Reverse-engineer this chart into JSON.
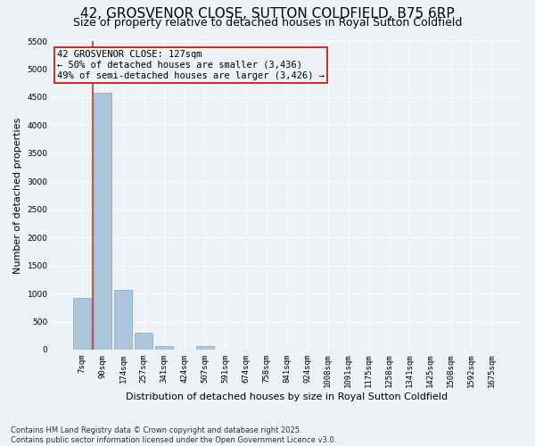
{
  "title": "42, GROSVENOR CLOSE, SUTTON COLDFIELD, B75 6RP",
  "subtitle": "Size of property relative to detached houses in Royal Sutton Coldfield",
  "xlabel": "Distribution of detached houses by size in Royal Sutton Coldfield",
  "ylabel": "Number of detached properties",
  "categories": [
    "7sqm",
    "90sqm",
    "174sqm",
    "257sqm",
    "341sqm",
    "424sqm",
    "507sqm",
    "591sqm",
    "674sqm",
    "758sqm",
    "841sqm",
    "924sqm",
    "1008sqm",
    "1091sqm",
    "1175sqm",
    "1258sqm",
    "1341sqm",
    "1425sqm",
    "1508sqm",
    "1592sqm",
    "1675sqm"
  ],
  "values": [
    920,
    4580,
    1070,
    305,
    65,
    0,
    55,
    0,
    0,
    0,
    0,
    0,
    0,
    0,
    0,
    0,
    0,
    0,
    0,
    0,
    0
  ],
  "bar_color": "#aec6db",
  "bar_edgecolor": "#8ab0cc",
  "ylim": [
    0,
    5500
  ],
  "yticks": [
    0,
    500,
    1000,
    1500,
    2000,
    2500,
    3000,
    3500,
    4000,
    4500,
    5000,
    5500
  ],
  "vline_x_bar_index": 1,
  "vline_color": "#c0392b",
  "annotation_text": "42 GROSVENOR CLOSE: 127sqm\n← 50% of detached houses are smaller (3,436)\n49% of semi-detached houses are larger (3,426) →",
  "annotation_box_color": "#c0392b",
  "footer": "Contains HM Land Registry data © Crown copyright and database right 2025.\nContains public sector information licensed under the Open Government Licence v3.0.",
  "background_color": "#eef2f7",
  "grid_color": "#ffffff",
  "title_fontsize": 11,
  "subtitle_fontsize": 9,
  "tick_fontsize": 6.5,
  "ylabel_fontsize": 8,
  "xlabel_fontsize": 8,
  "annot_fontsize": 7.5
}
